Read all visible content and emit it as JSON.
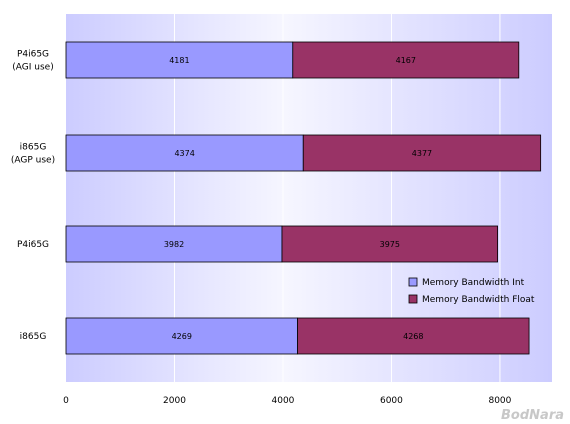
{
  "chart_data": {
    "type": "bar",
    "orientation": "horizontal",
    "stacked": true,
    "categories": [
      [
        "P4i65G",
        "(AGI use)"
      ],
      [
        "i865G",
        "(AGP use)"
      ],
      [
        "P4i65G"
      ],
      [
        "i865G"
      ]
    ],
    "series": [
      {
        "name": "Memory Bandwidth Int",
        "color": "#9999ff",
        "values": [
          4181,
          4374,
          3982,
          4269
        ]
      },
      {
        "name": "Memory Bandwidth Float",
        "color": "#993366",
        "values": [
          4167,
          4377,
          3975,
          4268
        ]
      }
    ],
    "xlim": [
      0,
      8960
    ],
    "xticks": [
      0,
      2000,
      4000,
      6000,
      8000
    ],
    "grid": true,
    "legend_position": "right",
    "watermark": "BodNara"
  }
}
